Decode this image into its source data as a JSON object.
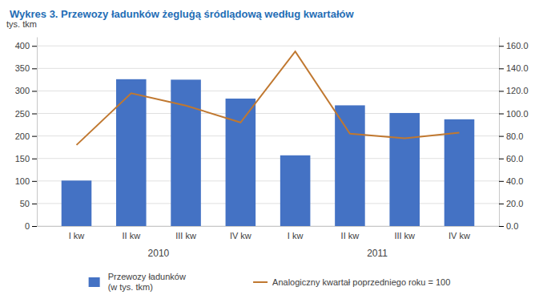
{
  "chart_data": {
    "type": "bar",
    "title": "Wykres 3. Przewozy ładunków żegluġą śródlądową według kwartałów",
    "ylabel": "tys. tkm",
    "categories": [
      "I kw",
      "II kw",
      "III kw",
      "IV kw",
      "I kw",
      "II kw",
      "III kw",
      "IV kw"
    ],
    "series": [
      {
        "name": "Przewozy ładunków\n(w tys. tkm)",
        "type": "bar",
        "color": "#4472C4",
        "values": [
          101,
          326,
          325,
          283,
          157,
          268,
          251,
          237
        ]
      },
      {
        "name": "Analogiczny kwartał poprzedniego roku = 100",
        "type": "line",
        "color": "#C07830",
        "axis": "y2",
        "values": [
          72.0,
          118.0,
          107.0,
          92.0,
          155.0,
          82.0,
          78.0,
          83.0
        ]
      }
    ],
    "ylim": [
      0,
      420
    ],
    "yticks": [
      0,
      50,
      100,
      150,
      200,
      250,
      300,
      350,
      400
    ],
    "y2lim": [
      0,
      168
    ],
    "y2ticks": [
      {
        "value": 0,
        "label": "0.0"
      },
      {
        "value": 20,
        "label": "20.0"
      },
      {
        "value": 40,
        "label": "40.0"
      },
      {
        "value": 60,
        "label": "60.0"
      },
      {
        "value": 80,
        "label": "80.0"
      },
      {
        "value": 100,
        "label": "100.0"
      },
      {
        "value": 120,
        "label": "120.0"
      },
      {
        "value": 140,
        "label": "140.0"
      },
      {
        "value": 160,
        "label": "160.0"
      }
    ],
    "annotations": [
      {
        "text": "2010",
        "x": 1.5
      },
      {
        "text": "2011",
        "x": 5.5
      }
    ],
    "grid": true,
    "legend": "bottom"
  }
}
